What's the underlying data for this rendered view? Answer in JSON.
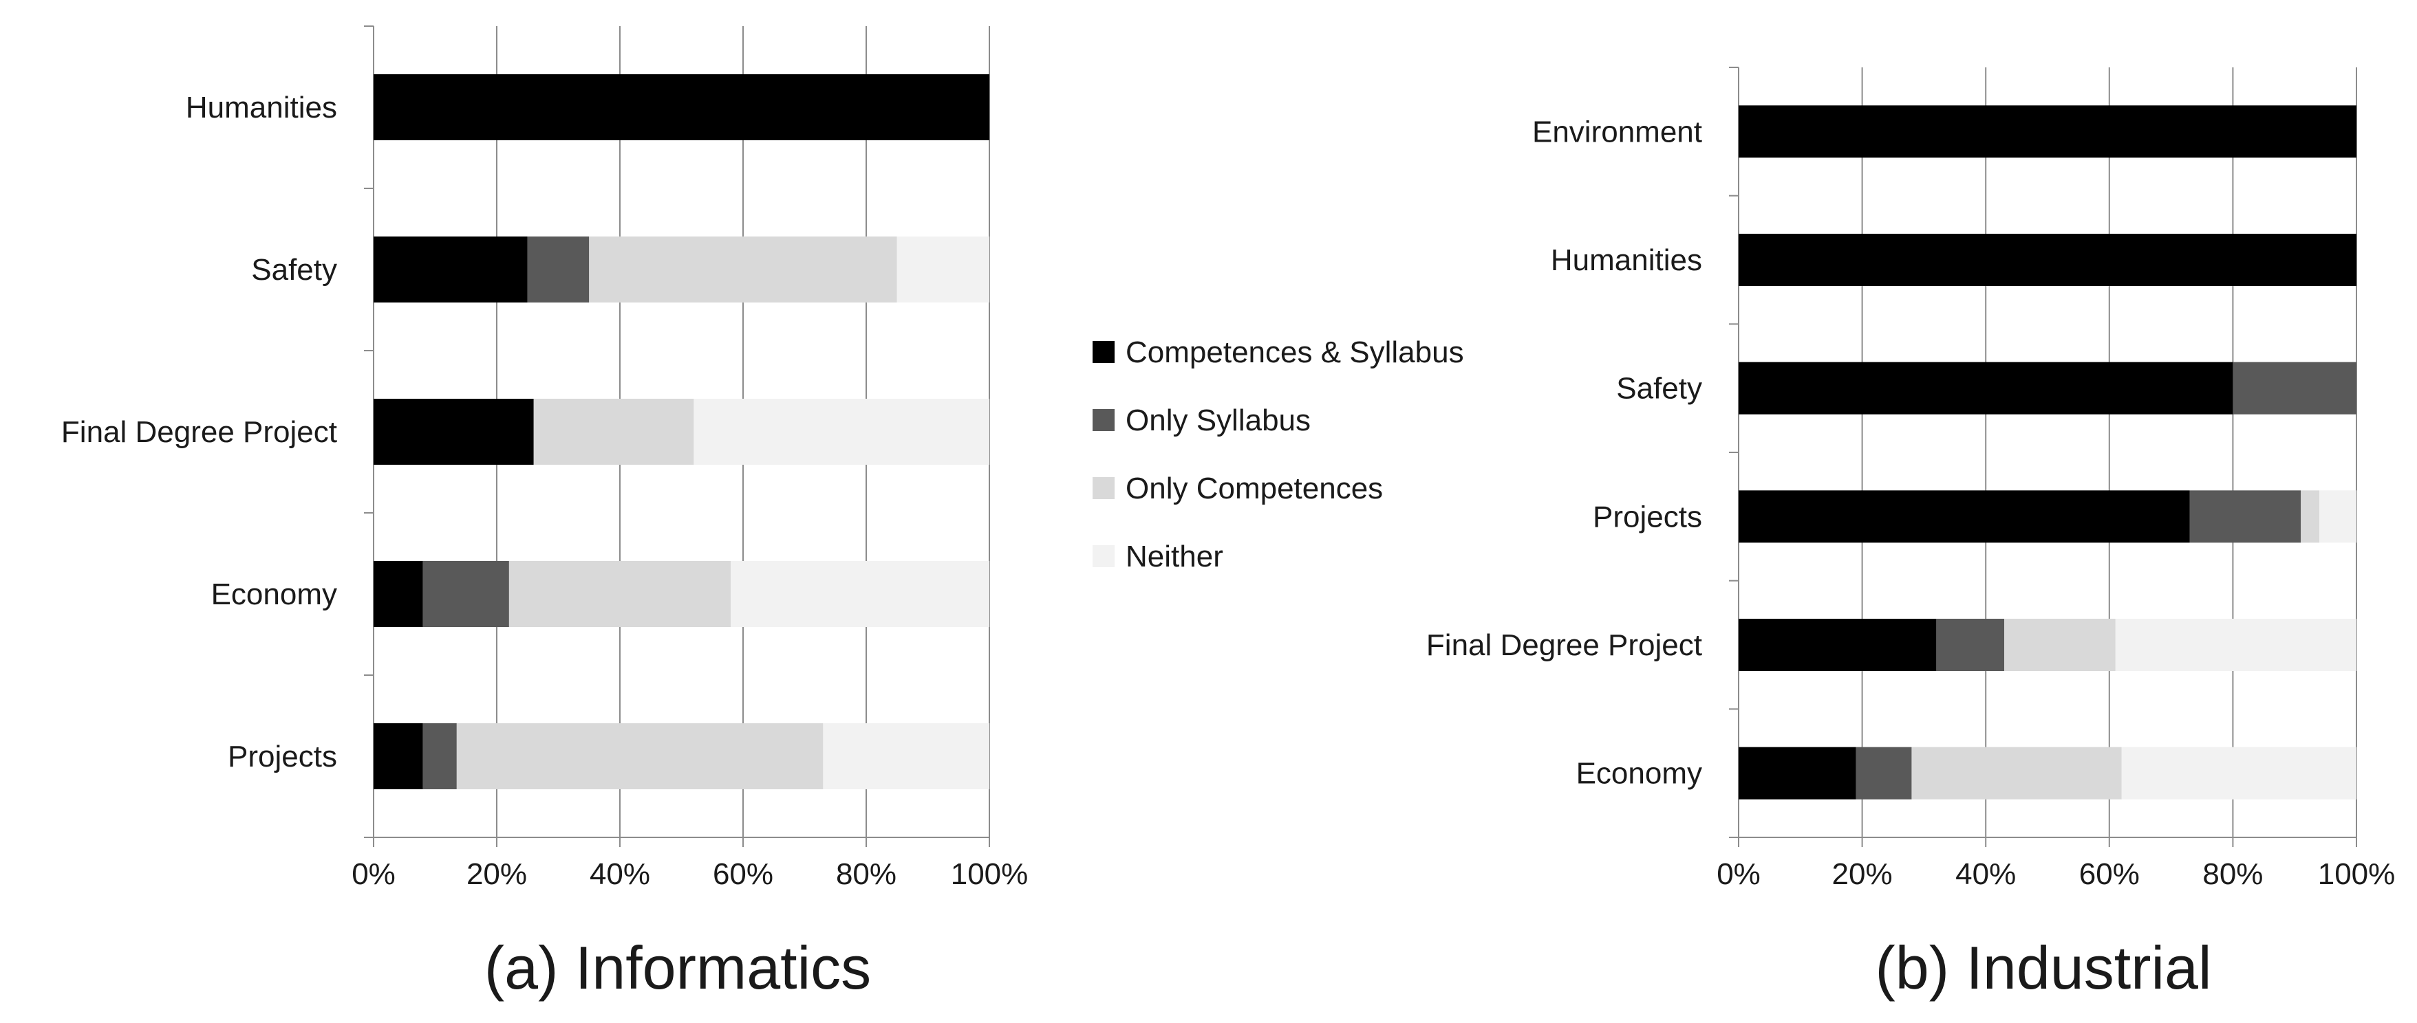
{
  "colors": {
    "Competences & Syllabus": "#000000",
    "Only Syllabus": "#595959",
    "Only Competences": "#d9d9d9",
    "Neither": "#f2f2f2"
  },
  "legend": {
    "items": [
      {
        "label": "Competences & Syllabus",
        "color": "#000000"
      },
      {
        "label": "Only Syllabus",
        "color": "#595959"
      },
      {
        "label": "Only Competences",
        "color": "#d9d9d9"
      },
      {
        "label": "Neither",
        "color": "#f2f2f2"
      }
    ]
  },
  "chart_data": [
    {
      "type": "bar",
      "orientation": "horizontal",
      "stacked": "percent",
      "title": "(a) Informatics",
      "categories": [
        "Humanities",
        "Safety",
        "Final Degree Project",
        "Economy",
        "Projects"
      ],
      "series": [
        {
          "name": "Competences & Syllabus",
          "values": [
            100,
            25,
            26,
            8,
            8
          ]
        },
        {
          "name": "Only Syllabus",
          "values": [
            0,
            10,
            0,
            14,
            5.5
          ]
        },
        {
          "name": "Only Competences",
          "values": [
            0,
            50,
            26,
            36,
            59.5
          ]
        },
        {
          "name": "Neither",
          "values": [
            0,
            15,
            48,
            42,
            27
          ]
        }
      ],
      "xticks": [
        "0%",
        "20%",
        "40%",
        "60%",
        "80%",
        "100%"
      ],
      "xlim": [
        0,
        100
      ],
      "grid": true
    },
    {
      "type": "bar",
      "orientation": "horizontal",
      "stacked": "percent",
      "title": "(b) Industrial",
      "categories": [
        "Environment",
        "Humanities",
        "Safety",
        "Projects",
        "Final Degree Project",
        "Economy"
      ],
      "series": [
        {
          "name": "Competences & Syllabus",
          "values": [
            100,
            100,
            80,
            73,
            32,
            19
          ]
        },
        {
          "name": "Only Syllabus",
          "values": [
            0,
            0,
            20,
            18,
            11,
            9
          ]
        },
        {
          "name": "Only Competences",
          "values": [
            0,
            0,
            0,
            3,
            18,
            34
          ]
        },
        {
          "name": "Neither",
          "values": [
            0,
            0,
            0,
            6,
            39,
            38
          ]
        }
      ],
      "xticks": [
        "0%",
        "20%",
        "40%",
        "60%",
        "80%",
        "100%"
      ],
      "xlim": [
        0,
        100
      ],
      "grid": true
    }
  ]
}
